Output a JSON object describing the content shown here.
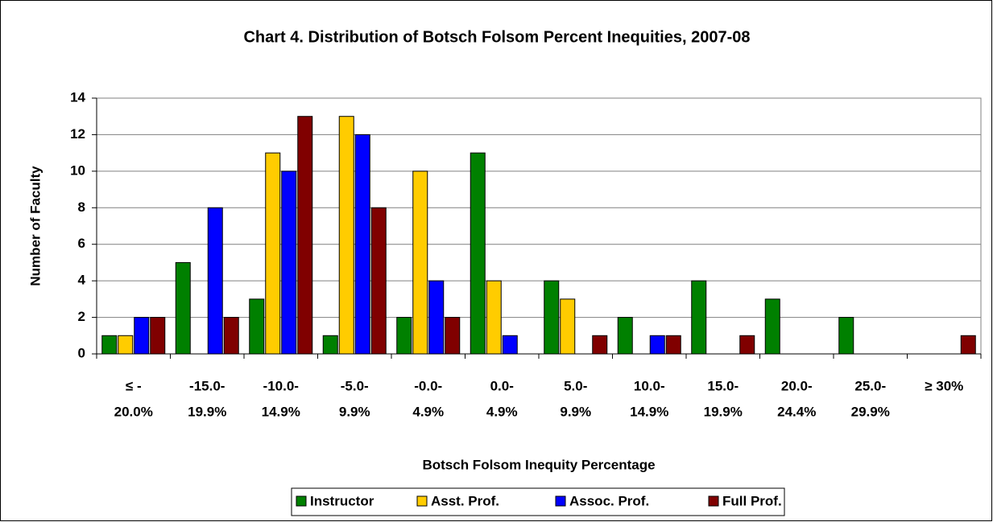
{
  "chart_data": {
    "type": "bar",
    "title": "Chart 4. Distribution of Botsch Folsom Percent Inequities, 2007-08",
    "x_label": "Botsch Folsom Inequity Percentage",
    "y_label": "Number of Faculty",
    "categories": [
      [
        "≤ -",
        "20.0%"
      ],
      [
        "-15.0-",
        "19.9%"
      ],
      [
        "-10.0-",
        "14.9%"
      ],
      [
        "-5.0-",
        "9.9%"
      ],
      [
        "-0.0-",
        "4.9%"
      ],
      [
        "0.0-",
        "4.9%"
      ],
      [
        "5.0-",
        "9.9%"
      ],
      [
        "10.0-",
        "14.9%"
      ],
      [
        "15.0-",
        "19.9%"
      ],
      [
        "20.0-",
        "24.4%"
      ],
      [
        "25.0-",
        "29.9%"
      ],
      [
        "≥ 30%"
      ]
    ],
    "series": [
      {
        "name": "Instructor",
        "color": "#008000",
        "values": [
          1,
          5,
          3,
          1,
          2,
          11,
          4,
          2,
          4,
          3,
          2,
          0
        ]
      },
      {
        "name": "Asst. Prof.",
        "color": "#ffcc00",
        "values": [
          1,
          0,
          11,
          13,
          10,
          4,
          3,
          0,
          0,
          0,
          0,
          0
        ]
      },
      {
        "name": "Assoc. Prof.",
        "color": "#0000ff",
        "values": [
          2,
          8,
          10,
          12,
          4,
          1,
          0,
          1,
          0,
          0,
          0,
          0
        ]
      },
      {
        "name": "Full Prof.",
        "color": "#800000",
        "values": [
          2,
          2,
          13,
          8,
          2,
          0,
          1,
          1,
          1,
          0,
          0,
          1
        ]
      }
    ],
    "ylim": [
      0,
      14
    ],
    "yticks": [
      0,
      2,
      4,
      6,
      8,
      10,
      12,
      14
    ],
    "grid": true,
    "legend": "bottom"
  }
}
